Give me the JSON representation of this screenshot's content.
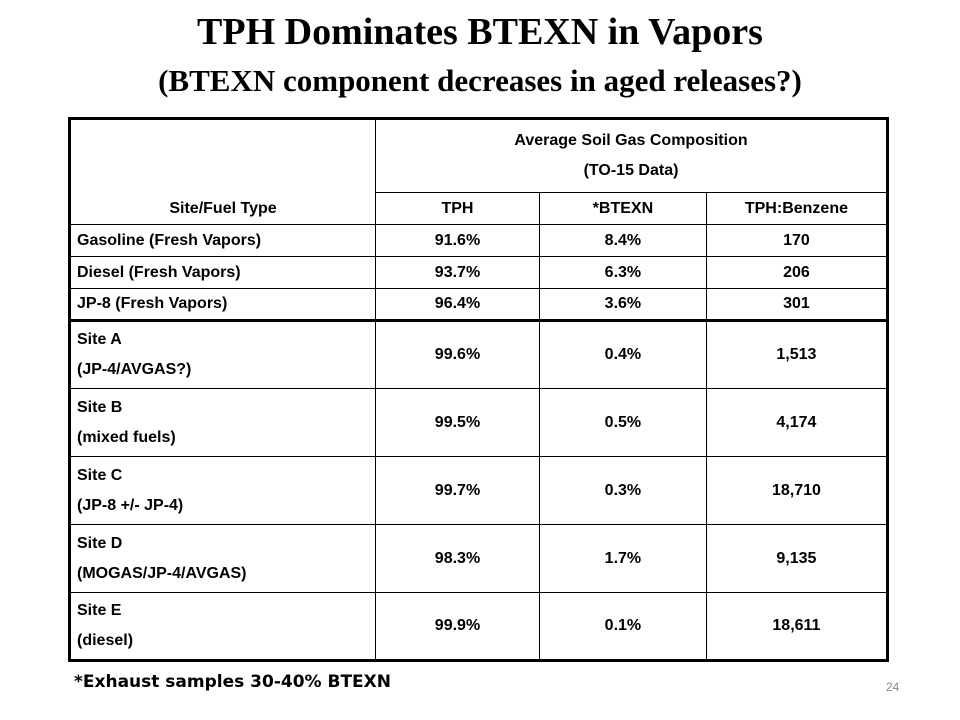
{
  "title": "TPH Dominates BTEXN in Vapors",
  "subtitle": "(BTEXN component decreases in aged releases?)",
  "table": {
    "row_header": "Site/Fuel Type",
    "group_heading_line1": "Average Soil Gas Composition",
    "group_heading_line2": "(TO-15 Data)",
    "columns": [
      "TPH",
      "*BTEXN",
      "TPH:Benzene"
    ],
    "fresh_rows": [
      {
        "site": "Gasoline (Fresh Vapors)",
        "tph": "91.6%",
        "btexn": "8.4%",
        "ratio": "170"
      },
      {
        "site": "Diesel (Fresh Vapors)",
        "tph": "93.7%",
        "btexn": "6.3%",
        "ratio": "206"
      },
      {
        "site": "JP-8 (Fresh Vapors)",
        "tph": "96.4%",
        "btexn": "3.6%",
        "ratio": "301"
      }
    ],
    "site_rows": [
      {
        "site": "Site A",
        "fuel": "(JP-4/AVGAS?)",
        "tph": "99.6%",
        "btexn": "0.4%",
        "ratio": "1,513"
      },
      {
        "site": "Site B",
        "fuel": "(mixed fuels)",
        "tph": "99.5%",
        "btexn": "0.5%",
        "ratio": "4,174"
      },
      {
        "site": "Site C",
        "fuel": "(JP-8 +/- JP-4)",
        "tph": "99.7%",
        "btexn": "0.3%",
        "ratio": "18,710"
      },
      {
        "site": "Site D",
        "fuel": "(MOGAS/JP-4/AVGAS)",
        "tph": "98.3%",
        "btexn": "1.7%",
        "ratio": "9,135"
      },
      {
        "site": "Site E",
        "fuel": "(diesel)",
        "tph": "99.9%",
        "btexn": "0.1%",
        "ratio": "18,611"
      }
    ]
  },
  "footnote": "*Exhaust samples 30-40% BTEXN",
  "page_number": "24"
}
